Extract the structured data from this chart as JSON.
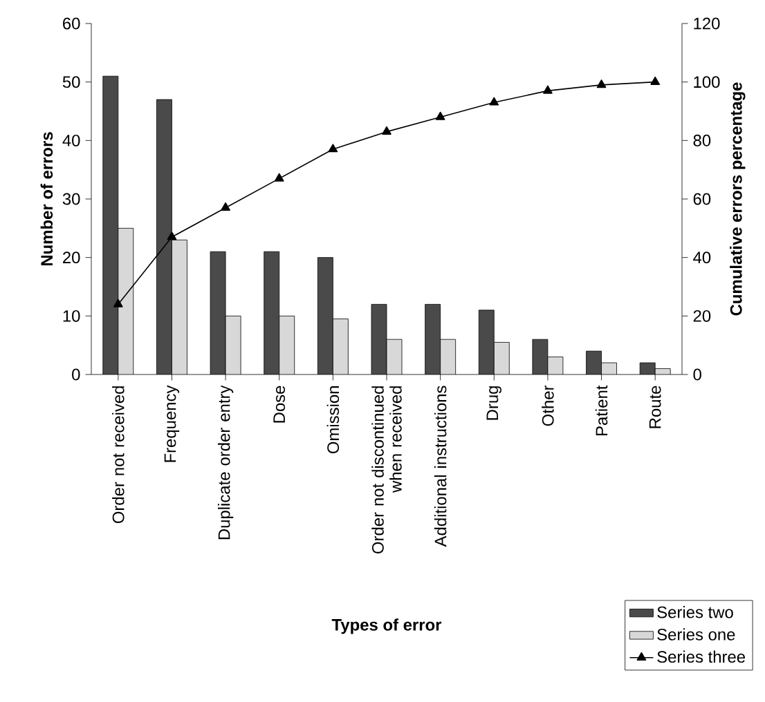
{
  "chart_data": {
    "type": "bar",
    "xlabel": "Types of error",
    "ylabel": "Number of errors",
    "y2label": "Cumulative errors percentage",
    "categories": [
      "Order not received",
      "Frequency",
      "Duplicate order entry",
      "Dose",
      "Omission",
      "Order not discontinued when received",
      "Additional instructions",
      "Drug",
      "Other",
      "Patient",
      "Route"
    ],
    "series": [
      {
        "name": "Series two",
        "color": "#4a4a4a",
        "values": [
          51,
          47,
          21,
          21,
          20,
          12,
          12,
          11,
          6,
          4,
          2
        ]
      },
      {
        "name": "Series one",
        "color": "#d8d8d8",
        "values": [
          25,
          23,
          10,
          10,
          9.5,
          6,
          6,
          5.5,
          3,
          2,
          1
        ]
      },
      {
        "name": "Series three",
        "type": "line",
        "axis": "y2",
        "color": "#000000",
        "marker": "triangle",
        "values": [
          24,
          47,
          57,
          67,
          77,
          83,
          88,
          93,
          97,
          99,
          100
        ]
      }
    ],
    "ylim": [
      0,
      60
    ],
    "yticks": [
      0,
      10,
      20,
      30,
      40,
      50,
      60
    ],
    "y2lim": [
      0,
      120
    ],
    "y2ticks": [
      0,
      20,
      40,
      60,
      80,
      100,
      120
    ],
    "grid": false,
    "legend": "bottom right"
  }
}
